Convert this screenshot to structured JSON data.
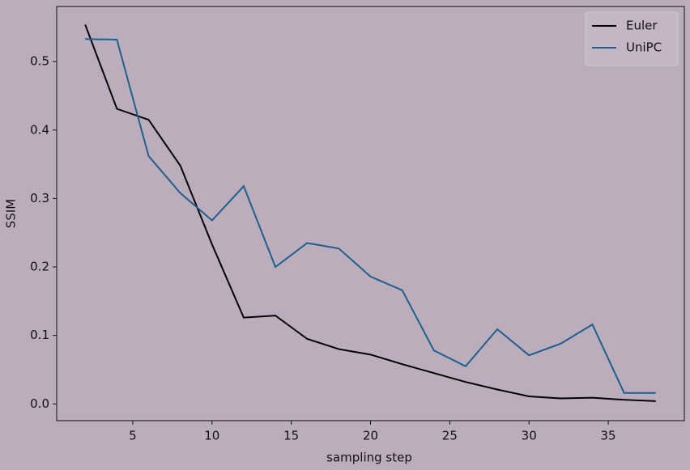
{
  "chart_data": {
    "type": "line",
    "xlabel": "sampling step",
    "ylabel": "SSIM",
    "x": [
      2,
      4,
      6,
      8,
      10,
      12,
      14,
      16,
      18,
      20,
      22,
      24,
      26,
      28,
      30,
      32,
      34,
      36,
      38
    ],
    "series": [
      {
        "name": "Euler",
        "color": "#000000",
        "values": [
          0.554,
          0.431,
          0.415,
          0.348,
          0.233,
          0.126,
          0.129,
          0.095,
          0.08,
          0.072,
          0.058,
          0.045,
          0.032,
          0.021,
          0.011,
          0.008,
          0.009,
          0.006,
          0.004
        ]
      },
      {
        "name": "UniPC",
        "color": "#1f5f8b",
        "values": [
          0.533,
          0.532,
          0.362,
          0.308,
          0.268,
          0.318,
          0.2,
          0.235,
          0.227,
          0.186,
          0.166,
          0.078,
          0.055,
          0.109,
          0.071,
          0.088,
          0.116,
          0.016,
          0.016
        ]
      }
    ],
    "xlim": [
      0.2,
      39.8
    ],
    "xticks": [
      5,
      10,
      15,
      20,
      25,
      30,
      35
    ],
    "ylim": [
      -0.0245,
      0.5805
    ],
    "yticks": [
      {
        "value": 0,
        "label": "0.0"
      },
      0.1,
      0.2,
      0.3,
      0.4,
      0.5
    ],
    "legend": "upper right",
    "grid": false
  }
}
